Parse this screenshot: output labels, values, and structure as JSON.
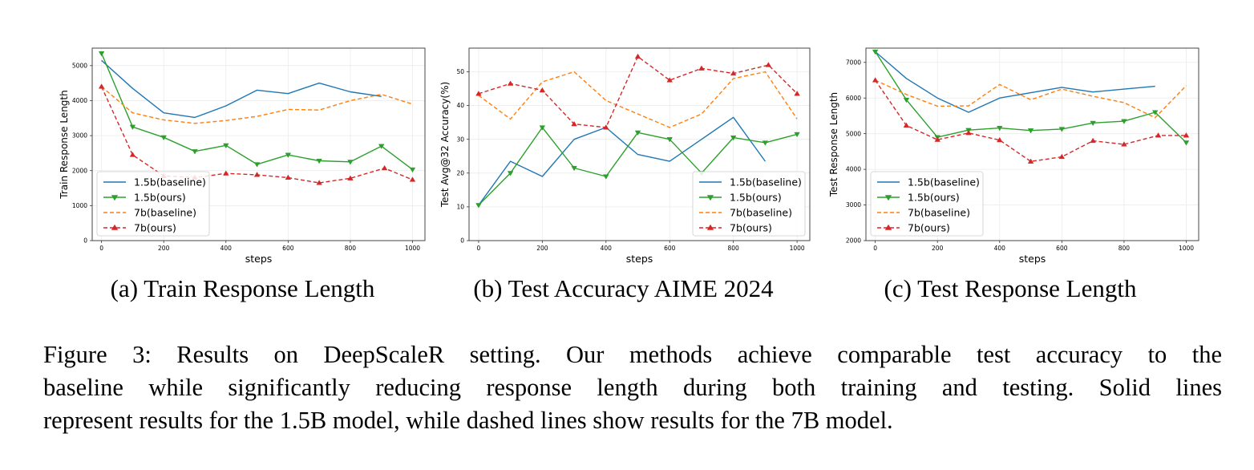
{
  "colors": {
    "baseline_1_5b": "#1f77b4",
    "ours_1_5b": "#2ca02c",
    "baseline_7b": "#ff7f0e",
    "ours_7b": "#d62728",
    "grid": "#ebebeb",
    "axis": "#333333"
  },
  "legend": {
    "items": [
      "1.5b(baseline)",
      "1.5b(ours)",
      "7b(baseline)",
      "7b(ours)"
    ]
  },
  "chart_data": [
    {
      "id": "a",
      "type": "line",
      "caption": "(a) Train Response Length",
      "xlabel": "steps",
      "ylabel": "Train Response Length",
      "xlim": [
        -30,
        1040
      ],
      "ylim": [
        0,
        5500
      ],
      "xticks": [
        0,
        200,
        400,
        600,
        800,
        1000
      ],
      "yticks": [
        0,
        1000,
        2000,
        3000,
        4000,
        5000
      ],
      "grid": true,
      "legend_position": "lower-left",
      "series": [
        {
          "name": "1.5b(baseline)",
          "style": "solid",
          "marker": "none",
          "color_key": "baseline_1_5b",
          "x": [
            0,
            100,
            200,
            300,
            400,
            500,
            600,
            700,
            800,
            900
          ],
          "y": [
            5150,
            4350,
            3650,
            3520,
            3850,
            4300,
            4200,
            4500,
            4250,
            4120
          ]
        },
        {
          "name": "1.5b(ours)",
          "style": "solid",
          "marker": "triangle-down",
          "color_key": "ours_1_5b",
          "x": [
            0,
            100,
            200,
            300,
            400,
            500,
            600,
            700,
            800,
            900,
            1000
          ],
          "y": [
            5350,
            3250,
            2950,
            2550,
            2720,
            2180,
            2450,
            2280,
            2250,
            2700,
            2030
          ]
        },
        {
          "name": "7b(baseline)",
          "style": "dashed",
          "marker": "none",
          "color_key": "baseline_7b",
          "x": [
            0,
            100,
            200,
            300,
            400,
            500,
            600,
            700,
            800,
            900,
            1000
          ],
          "y": [
            4400,
            3650,
            3450,
            3350,
            3430,
            3550,
            3750,
            3730,
            4000,
            4180,
            3900
          ]
        },
        {
          "name": "7b(ours)",
          "style": "dashed",
          "marker": "triangle-up",
          "color_key": "ours_7b",
          "x": [
            0,
            100,
            200,
            300,
            400,
            500,
            600,
            700,
            800,
            910,
            1000
          ],
          "y": [
            4400,
            2450,
            1850,
            1800,
            1920,
            1880,
            1800,
            1650,
            1780,
            2070,
            1740
          ]
        }
      ]
    },
    {
      "id": "b",
      "type": "line",
      "caption": "(b) Test Accuracy AIME 2024",
      "xlabel": "steps",
      "ylabel": "Test Avg@32 Accuracy(%)",
      "xlim": [
        -30,
        1040
      ],
      "ylim": [
        0,
        57
      ],
      "xticks": [
        0,
        200,
        400,
        600,
        800,
        1000
      ],
      "yticks": [
        0,
        10,
        20,
        30,
        40,
        50
      ],
      "grid": true,
      "legend_position": "lower-right",
      "series": [
        {
          "name": "1.5b(baseline)",
          "style": "solid",
          "marker": "none",
          "color_key": "baseline_1_5b",
          "x": [
            0,
            100,
            200,
            300,
            400,
            500,
            600,
            700,
            800,
            900
          ],
          "y": [
            10.5,
            23.5,
            19,
            30,
            33.5,
            25.5,
            23.5,
            30,
            36.5,
            23.5
          ]
        },
        {
          "name": "1.5b(ours)",
          "style": "solid",
          "marker": "triangle-down",
          "color_key": "ours_1_5b",
          "x": [
            0,
            100,
            200,
            300,
            400,
            500,
            600,
            700,
            800,
            900,
            1000
          ],
          "y": [
            10.5,
            20,
            33.5,
            21.5,
            19,
            32,
            30,
            20,
            30.5,
            29,
            31.5
          ]
        },
        {
          "name": "7b(baseline)",
          "style": "dashed",
          "marker": "none",
          "color_key": "baseline_7b",
          "x": [
            0,
            100,
            200,
            300,
            400,
            500,
            600,
            700,
            800,
            900,
            1000
          ],
          "y": [
            43,
            36,
            47,
            50,
            41.5,
            37.5,
            33.5,
            37.5,
            48,
            50,
            36
          ]
        },
        {
          "name": "7b(ours)",
          "style": "dashed",
          "marker": "triangle-up",
          "color_key": "ours_7b",
          "x": [
            0,
            100,
            200,
            300,
            400,
            500,
            600,
            700,
            800,
            910,
            1000
          ],
          "y": [
            43.5,
            46.5,
            44.5,
            34.5,
            33.5,
            54.5,
            47.5,
            51,
            49.5,
            52,
            43.5
          ]
        }
      ]
    },
    {
      "id": "c",
      "type": "line",
      "caption": "(c) Test Response Length",
      "xlabel": "steps",
      "ylabel": "Test Response Length",
      "xlim": [
        -30,
        1040
      ],
      "ylim": [
        2000,
        7400
      ],
      "xticks": [
        0,
        200,
        400,
        600,
        800,
        1000
      ],
      "yticks": [
        2000,
        3000,
        4000,
        5000,
        6000,
        7000
      ],
      "grid": true,
      "legend_position": "lower-left",
      "series": [
        {
          "name": "1.5b(baseline)",
          "style": "solid",
          "marker": "none",
          "color_key": "baseline_1_5b",
          "x": [
            0,
            100,
            200,
            300,
            400,
            500,
            600,
            700,
            800,
            900
          ],
          "y": [
            7300,
            6550,
            6000,
            5600,
            6000,
            6150,
            6300,
            6170,
            6250,
            6330
          ]
        },
        {
          "name": "1.5b(ours)",
          "style": "solid",
          "marker": "triangle-down",
          "color_key": "ours_1_5b",
          "x": [
            0,
            100,
            200,
            300,
            400,
            500,
            600,
            700,
            800,
            900,
            1000
          ],
          "y": [
            7300,
            5950,
            4900,
            5100,
            5160,
            5090,
            5130,
            5300,
            5350,
            5600,
            4750
          ]
        },
        {
          "name": "7b(baseline)",
          "style": "dashed",
          "marker": "none",
          "color_key": "baseline_7b",
          "x": [
            0,
            100,
            200,
            300,
            400,
            500,
            600,
            700,
            800,
            900,
            1000
          ],
          "y": [
            6500,
            6100,
            5770,
            5780,
            6380,
            5950,
            6250,
            6050,
            5870,
            5450,
            6350
          ]
        },
        {
          "name": "7b(ours)",
          "style": "dashed",
          "marker": "triangle-up",
          "color_key": "ours_7b",
          "x": [
            0,
            100,
            200,
            300,
            400,
            500,
            600,
            700,
            800,
            910,
            1000
          ],
          "y": [
            6500,
            5230,
            4830,
            5020,
            4820,
            4220,
            4350,
            4800,
            4700,
            4950,
            4950
          ]
        }
      ]
    }
  ],
  "figure_caption": {
    "lines": [
      "Figure 3: Results on DeepScaleR setting.  Our methods achieve comparable test accuracy to the",
      "baseline while significantly reducing response length during both training and testing. Solid lines",
      "represent results for the 1.5B model, while dashed lines show results for the 7B model."
    ]
  }
}
